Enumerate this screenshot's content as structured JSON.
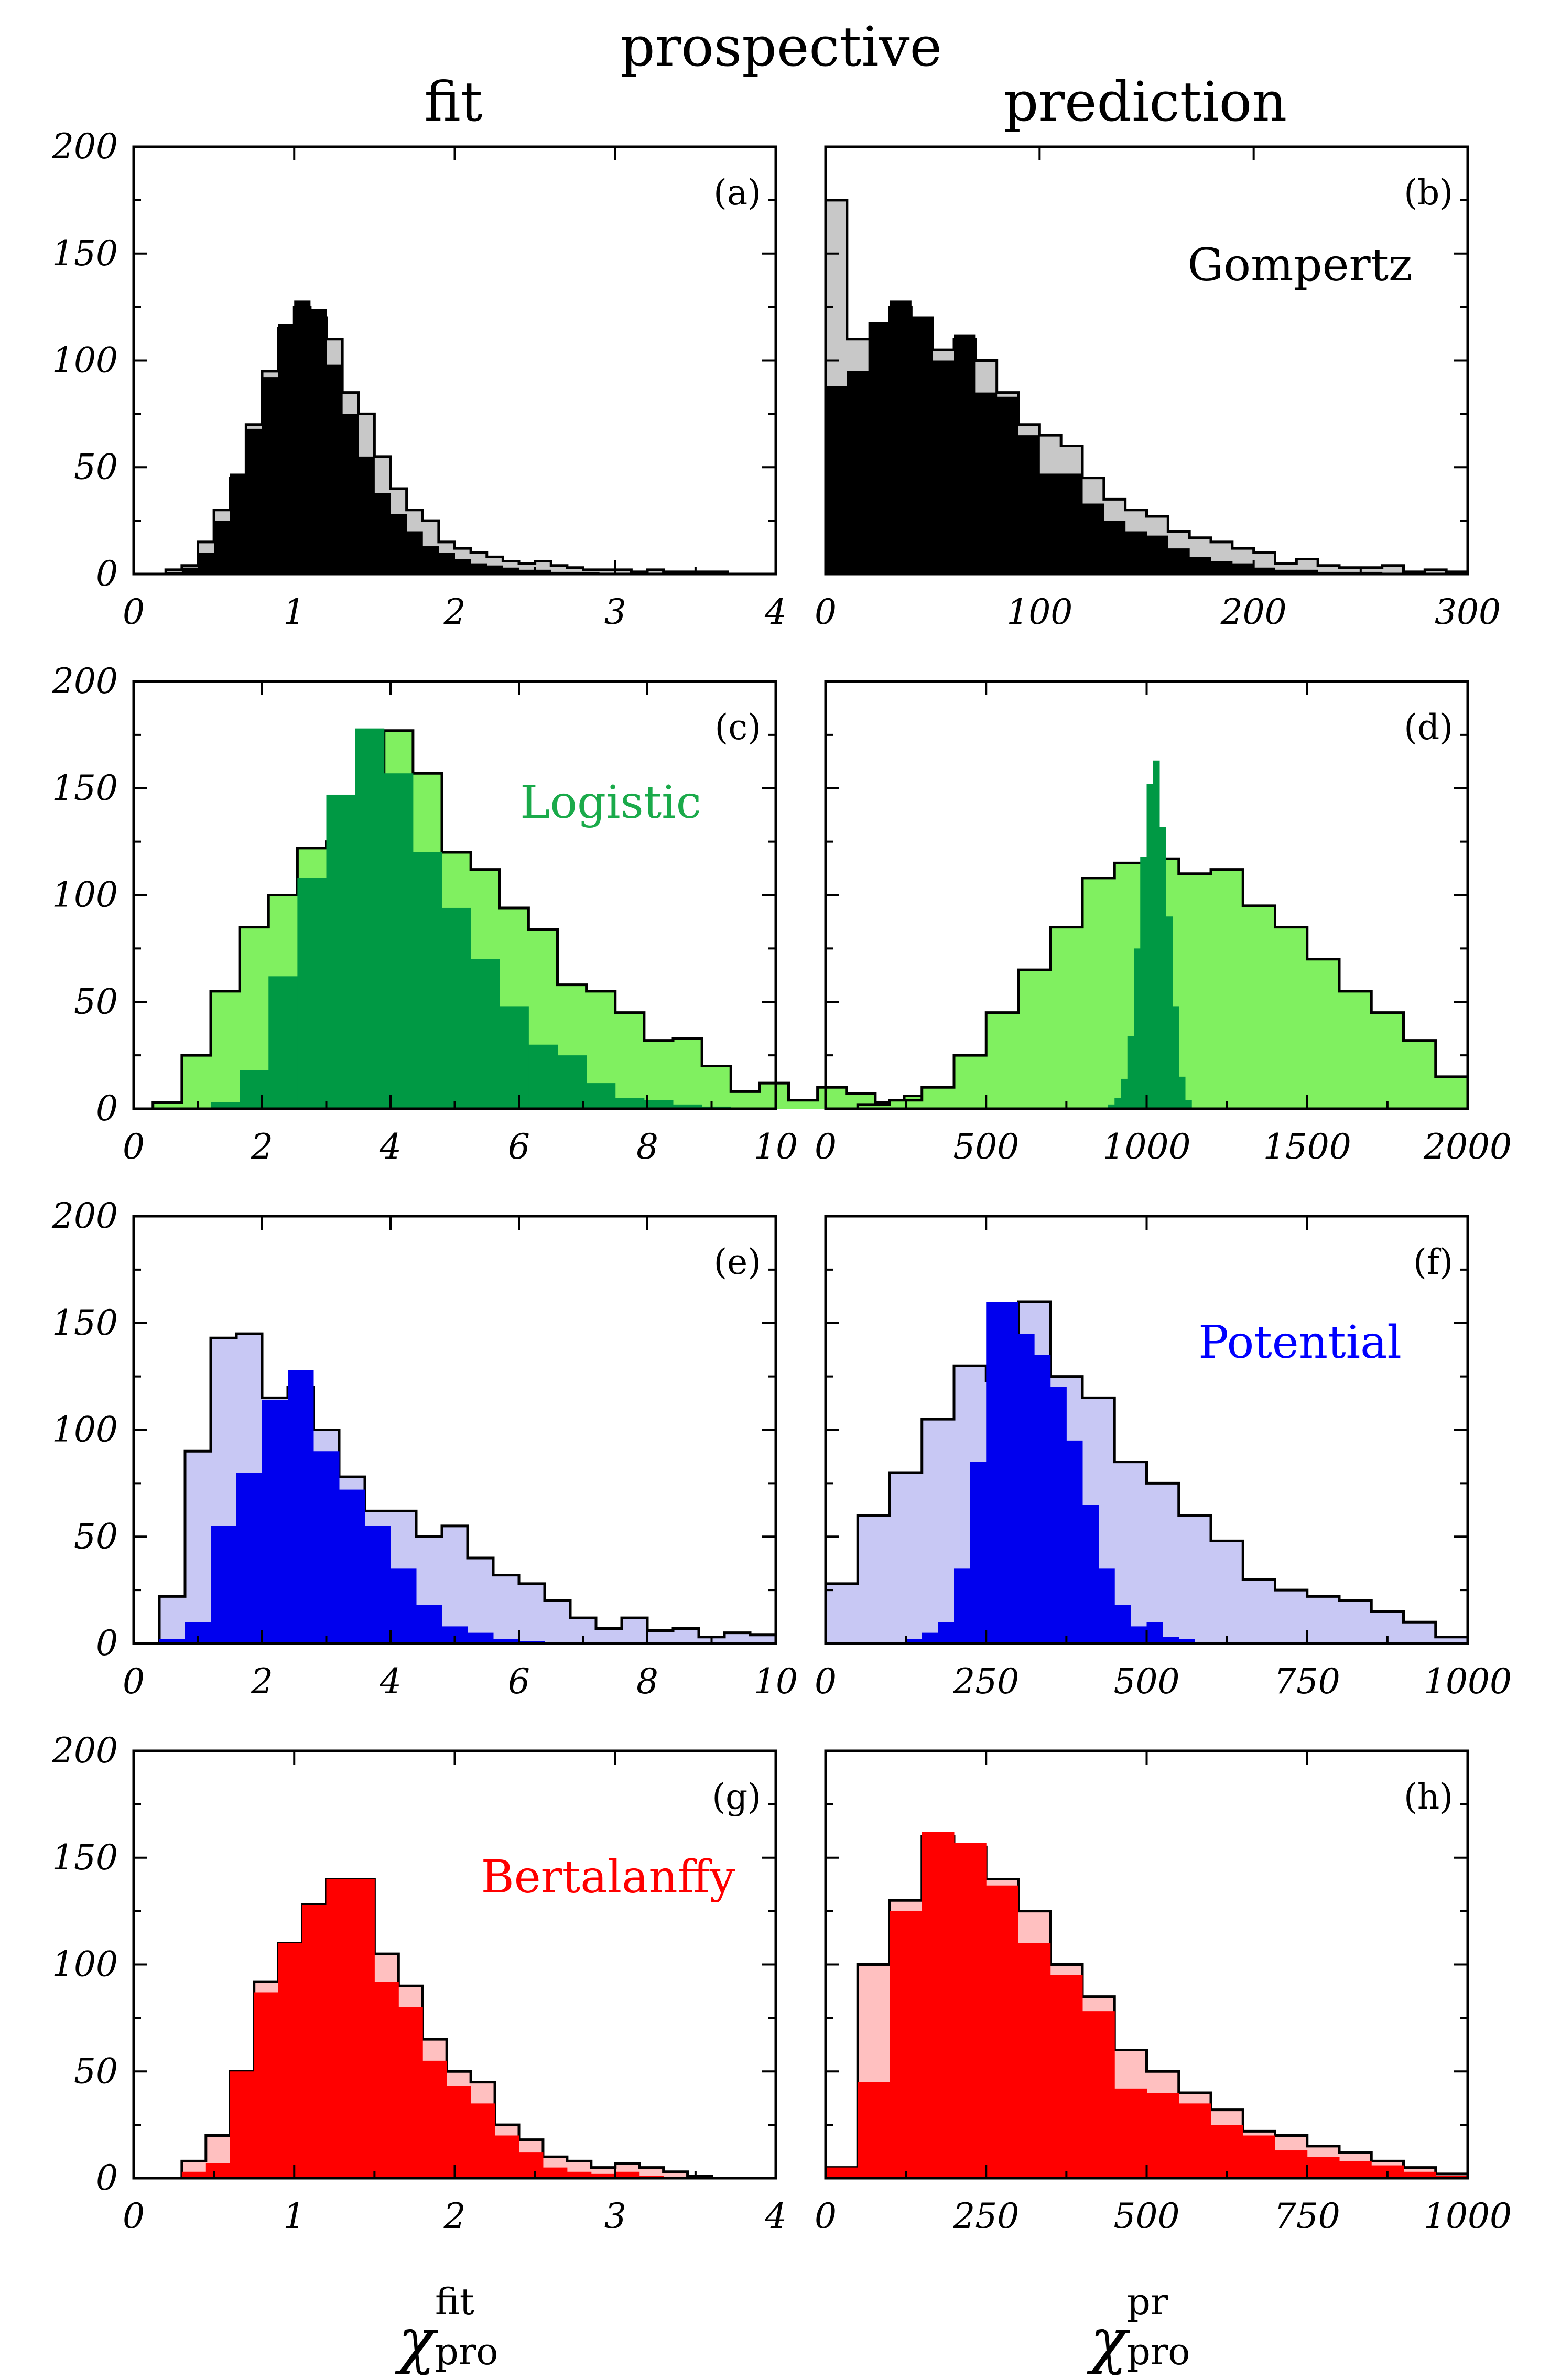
{
  "header": {
    "title": "prospective",
    "left_column": "fit",
    "right_column": "prediction"
  },
  "xlabels": {
    "left": {
      "symbol": "χ",
      "superscript": "fit",
      "subscript": "pro"
    },
    "right": {
      "symbol": "χ",
      "superscript": "pr",
      "subscript": "pro"
    }
  },
  "colors": {
    "frame": "#000000",
    "gompertz_light": "#c8c8c8",
    "gompertz_dark": "#000000",
    "logistic_light": "#80f060",
    "logistic_dark": "#009944",
    "logistic_text": "#1aaa4a",
    "potential_light": "#c8c8f4",
    "potential_dark": "#0000ee",
    "potential_text": "#0000ff",
    "bertalanffy_light": "#ffc0c0",
    "bertalanffy_dark": "#ff0000",
    "bertalanffy_text": "#ff0000"
  },
  "chart_data": [
    {
      "id": "a",
      "tag": "(a)",
      "type": "histogram",
      "model": "Gompertz",
      "column": "fit",
      "xlim": [
        0,
        4
      ],
      "ylim": [
        0,
        200
      ],
      "xticks": [
        "0",
        "1",
        "2",
        "3",
        "4"
      ],
      "yticks": [
        "0",
        "50",
        "100",
        "150",
        "200"
      ],
      "bin_start": 0.2,
      "bin_width": 0.1,
      "series": [
        {
          "name": "light",
          "color": "#c8c8c8",
          "outline": true,
          "values": [
            2,
            4,
            15,
            30,
            45,
            70,
            95,
            115,
            125,
            120,
            110,
            85,
            75,
            55,
            40,
            30,
            25,
            15,
            12,
            10,
            8,
            6,
            5,
            6,
            4,
            3,
            2,
            2,
            2,
            1,
            2,
            1,
            1,
            1,
            1
          ]
        },
        {
          "name": "dark",
          "color": "#000000",
          "outline": false,
          "values": [
            1,
            3,
            10,
            25,
            47,
            68,
            92,
            117,
            128,
            124,
            98,
            75,
            55,
            38,
            28,
            20,
            13,
            10,
            7,
            5,
            4,
            3,
            2,
            2,
            1,
            1,
            1,
            0,
            0,
            0,
            0,
            0,
            0,
            0,
            0
          ]
        }
      ]
    },
    {
      "id": "b",
      "tag": "(b)",
      "type": "histogram",
      "model": "Gompertz",
      "column": "prediction",
      "label": "Gompertz",
      "label_color": "#000000",
      "xlim": [
        0,
        300
      ],
      "ylim": [
        0,
        200
      ],
      "xticks": [
        "0",
        "100",
        "200",
        "300"
      ],
      "yticks": [
        "0",
        "50",
        "100",
        "150",
        "200"
      ],
      "bin_start": 0,
      "bin_width": 10,
      "series": [
        {
          "name": "light",
          "color": "#c8c8c8",
          "outline": true,
          "values": [
            175,
            110,
            110,
            125,
            120,
            105,
            110,
            100,
            85,
            70,
            65,
            60,
            45,
            35,
            30,
            27,
            20,
            17,
            15,
            12,
            10,
            5,
            7,
            4,
            3,
            3,
            4,
            1,
            2,
            1
          ]
        },
        {
          "name": "dark",
          "color": "#000000",
          "outline": false,
          "values": [
            88,
            95,
            118,
            128,
            120,
            100,
            112,
            85,
            83,
            65,
            47,
            47,
            33,
            25,
            20,
            18,
            12,
            8,
            6,
            5,
            3,
            2,
            2,
            1,
            1,
            1,
            0,
            0,
            0,
            0
          ]
        }
      ]
    },
    {
      "id": "c",
      "tag": "(c)",
      "type": "histogram",
      "model": "Logistic",
      "column": "fit",
      "label": "Logistic",
      "label_color": "#1aaa4a",
      "xlim": [
        0,
        10
      ],
      "ylim": [
        0,
        200
      ],
      "xticks": [
        "0",
        "2",
        "4",
        "6",
        "8",
        "10"
      ],
      "yticks": [
        "0",
        "50",
        "100",
        "150",
        "200"
      ],
      "bin_start": 0.3,
      "bin_width": 0.45,
      "series": [
        {
          "name": "light",
          "color": "#80f060",
          "outline": true,
          "values": [
            3,
            25,
            55,
            85,
            100,
            122,
            125,
            146,
            177,
            157,
            120,
            112,
            94,
            84,
            58,
            55,
            45,
            32,
            33,
            20,
            8,
            12,
            4,
            10,
            7,
            3,
            6,
            2,
            5
          ]
        },
        {
          "name": "dark",
          "color": "#009944",
          "outline": false,
          "values": [
            0,
            0,
            3,
            18,
            62,
            108,
            147,
            178,
            157,
            120,
            94,
            70,
            48,
            30,
            25,
            12,
            5,
            4,
            2,
            1,
            0,
            0,
            0,
            0,
            0,
            0,
            0,
            0,
            0
          ]
        }
      ]
    },
    {
      "id": "d",
      "tag": "(d)",
      "type": "histogram",
      "model": "Logistic",
      "column": "prediction",
      "xlim": [
        0,
        2000
      ],
      "ylim": [
        0,
        200
      ],
      "xticks": [
        "0",
        "500",
        "1000",
        "1500",
        "2000"
      ],
      "yticks": [
        "0",
        "50",
        "100",
        "150",
        "200"
      ],
      "bin_start": 0,
      "bin_width": 100,
      "series": [
        {
          "name": "light",
          "color": "#80f060",
          "outline": true,
          "values": [
            0,
            2,
            4,
            10,
            25,
            45,
            65,
            85,
            108,
            115,
            117,
            110,
            112,
            95,
            85,
            70,
            55,
            45,
            32,
            15
          ]
        },
        {
          "name": "dark",
          "color": "#009944",
          "outline": false,
          "bin_start": 880,
          "bin_width": 20,
          "values": [
            2,
            5,
            14,
            34,
            75,
            118,
            152,
            163,
            132,
            90,
            48,
            15,
            4
          ]
        }
      ]
    },
    {
      "id": "e",
      "tag": "(e)",
      "type": "histogram",
      "model": "Potential",
      "column": "fit",
      "xlim": [
        0,
        10
      ],
      "ylim": [
        0,
        200
      ],
      "xticks": [
        "0",
        "2",
        "4",
        "6",
        "8",
        "10"
      ],
      "yticks": [
        "0",
        "50",
        "100",
        "150",
        "200"
      ],
      "bin_start": 0.4,
      "bin_width": 0.4,
      "series": [
        {
          "name": "light",
          "color": "#c8c8f4",
          "outline": true,
          "values": [
            22,
            90,
            143,
            145,
            115,
            120,
            100,
            78,
            62,
            62,
            50,
            55,
            40,
            32,
            28,
            20,
            12,
            7,
            12,
            6,
            7,
            3,
            5,
            4
          ]
        },
        {
          "name": "dark",
          "color": "#0000ee",
          "outline": false,
          "values": [
            2,
            10,
            55,
            80,
            114,
            128,
            90,
            72,
            55,
            35,
            18,
            8,
            5,
            2,
            1,
            0,
            0,
            0,
            0,
            0,
            0,
            0,
            0,
            0
          ]
        }
      ]
    },
    {
      "id": "f",
      "tag": "(f)",
      "type": "histogram",
      "model": "Potential",
      "column": "prediction",
      "label": "Potential",
      "label_color": "#0000ff",
      "xlim": [
        0,
        1000
      ],
      "ylim": [
        0,
        200
      ],
      "xticks": [
        "0",
        "250",
        "500",
        "750",
        "1000"
      ],
      "yticks": [
        "0",
        "50",
        "100",
        "150",
        "200"
      ],
      "bin_start": 0,
      "bin_width": 50,
      "series": [
        {
          "name": "light",
          "color": "#c8c8f4",
          "outline": true,
          "values": [
            28,
            60,
            80,
            105,
            130,
            123,
            160,
            125,
            115,
            85,
            75,
            60,
            48,
            30,
            25,
            22,
            20,
            15,
            10,
            3
          ]
        },
        {
          "name": "dark",
          "color": "#0000ee",
          "outline": false,
          "bin_start": 125,
          "bin_width": 25,
          "values": [
            2,
            5,
            10,
            35,
            85,
            160,
            160,
            145,
            135,
            120,
            95,
            65,
            35,
            18,
            8,
            10,
            3,
            2
          ]
        }
      ]
    },
    {
      "id": "g",
      "tag": "(g)",
      "type": "histogram",
      "model": "Bertalanffy",
      "column": "fit",
      "label": "Bertalanffy",
      "label_color": "#ff0000",
      "xlim": [
        0,
        4
      ],
      "ylim": [
        0,
        200
      ],
      "xticks": [
        "0",
        "1",
        "2",
        "3",
        "4"
      ],
      "yticks": [
        "0",
        "50",
        "100",
        "150",
        "200"
      ],
      "bin_start": 0.3,
      "bin_width": 0.15,
      "series": [
        {
          "name": "light",
          "color": "#ffc0c0",
          "outline": true,
          "values": [
            8,
            20,
            50,
            92,
            110,
            128,
            140,
            140,
            105,
            90,
            65,
            50,
            45,
            25,
            18,
            10,
            8,
            5,
            7,
            5,
            3,
            1
          ]
        },
        {
          "name": "dark",
          "color": "#ff0000",
          "outline": false,
          "values": [
            3,
            7,
            50,
            87,
            110,
            128,
            140,
            140,
            92,
            80,
            55,
            43,
            35,
            20,
            12,
            5,
            3,
            2,
            3,
            1,
            0,
            0
          ]
        }
      ]
    },
    {
      "id": "h",
      "tag": "(h)",
      "type": "histogram",
      "model": "Bertalanffy",
      "column": "prediction",
      "xlim": [
        0,
        1000
      ],
      "ylim": [
        0,
        200
      ],
      "xticks": [
        "0",
        "250",
        "500",
        "750",
        "1000"
      ],
      "yticks": [
        "0",
        "50",
        "100",
        "150",
        "200"
      ],
      "bin_start": 0,
      "bin_width": 50,
      "series": [
        {
          "name": "light",
          "color": "#ffc0c0",
          "outline": true,
          "values": [
            5,
            100,
            130,
            160,
            155,
            140,
            125,
            100,
            85,
            60,
            50,
            40,
            32,
            22,
            20,
            15,
            12,
            8,
            5,
            2
          ]
        },
        {
          "name": "dark",
          "color": "#ff0000",
          "outline": false,
          "values": [
            5,
            45,
            125,
            162,
            157,
            137,
            110,
            95,
            78,
            42,
            40,
            35,
            25,
            20,
            13,
            10,
            8,
            6,
            3,
            1
          ]
        }
      ]
    }
  ]
}
